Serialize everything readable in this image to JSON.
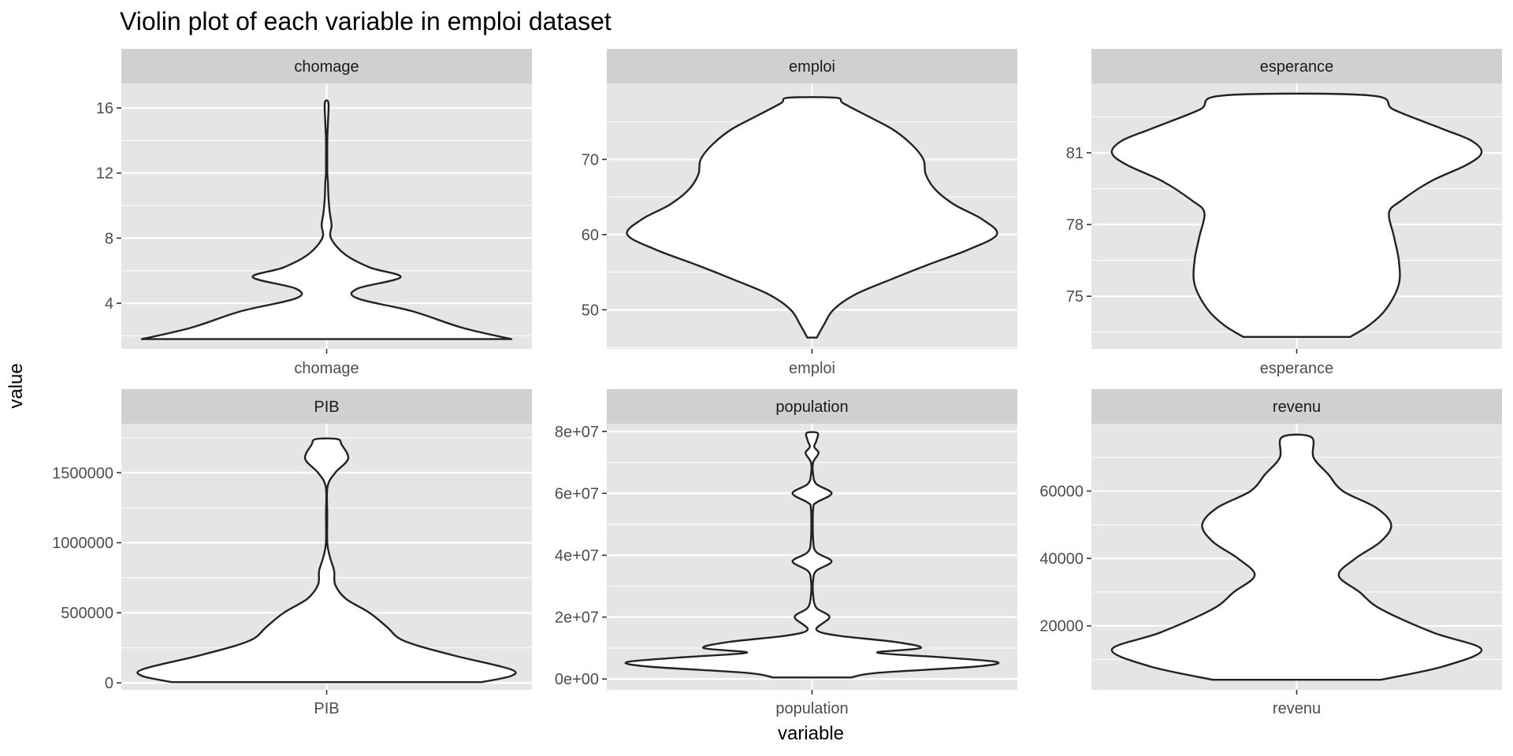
{
  "chart_data": {
    "type": "violin",
    "title": "Violin plot of each variable in emploi dataset",
    "xlabel": "variable",
    "ylabel": "value",
    "layout": "facet grid 2 rows x 3 columns, free y scales",
    "colors": {
      "panel_bg": "#e5e5e5",
      "strip_bg": "#d0d0d0",
      "grid": "#ffffff",
      "violin_fill": "#ffffff",
      "violin_stroke": "#222222",
      "tick_label": "#4d4d4d"
    },
    "panels": [
      {
        "name": "chomage",
        "x_tick": "chomage",
        "ylim": [
          1.2,
          17.5
        ],
        "y_ticks": [
          4,
          8,
          12,
          16
        ],
        "y_tick_labels": [
          "4",
          "8",
          "12",
          "16"
        ],
        "violin_range": [
          1.8,
          16.3
        ],
        "density_profile": [
          [
            1.8,
            0.3
          ],
          [
            2.5,
            0.22
          ],
          [
            3.5,
            0.14
          ],
          [
            4.3,
            0.05
          ],
          [
            4.9,
            0.05
          ],
          [
            5.6,
            0.12
          ],
          [
            6.2,
            0.07
          ],
          [
            7.0,
            0.03
          ],
          [
            8.0,
            0.007
          ],
          [
            8.8,
            0.008
          ],
          [
            9.6,
            0.005
          ],
          [
            10.5,
            0.003
          ],
          [
            11.5,
            0.002
          ],
          [
            12.0,
            0.001
          ],
          [
            13.0,
            0.001
          ],
          [
            14.0,
            0.001
          ],
          [
            15.0,
            0.002
          ],
          [
            16.3,
            0.003
          ]
        ]
      },
      {
        "name": "emploi",
        "x_tick": "emploi",
        "ylim": [
          44.8,
          80.1
        ],
        "y_ticks": [
          50,
          60,
          70
        ],
        "y_tick_labels": [
          "50",
          "60",
          "70"
        ],
        "violin_range": [
          46.3,
          78.2
        ],
        "density_profile": [
          [
            46.3,
            0.02
          ],
          [
            48.0,
            0.05
          ],
          [
            50.0,
            0.09
          ],
          [
            52.0,
            0.18
          ],
          [
            54.0,
            0.33
          ],
          [
            56.0,
            0.49
          ],
          [
            58.0,
            0.66
          ],
          [
            60.0,
            0.78
          ],
          [
            62.0,
            0.72
          ],
          [
            64.0,
            0.6
          ],
          [
            66.0,
            0.52
          ],
          [
            68.0,
            0.48
          ],
          [
            70.0,
            0.47
          ],
          [
            72.0,
            0.42
          ],
          [
            74.0,
            0.34
          ],
          [
            76.0,
            0.22
          ],
          [
            77.5,
            0.13
          ],
          [
            78.2,
            0.1
          ]
        ]
      },
      {
        "name": "esperance",
        "x_tick": "esperance",
        "ylim": [
          72.8,
          83.9
        ],
        "y_ticks": [
          75,
          78,
          81
        ],
        "y_tick_labels": [
          "75",
          "78",
          "81"
        ],
        "violin_range": [
          73.3,
          83.4
        ],
        "density_profile": [
          [
            73.3,
            0.22
          ],
          [
            73.8,
            0.3
          ],
          [
            74.5,
            0.37
          ],
          [
            75.5,
            0.42
          ],
          [
            76.5,
            0.42
          ],
          [
            77.5,
            0.4
          ],
          [
            78.5,
            0.38
          ],
          [
            79.0,
            0.43
          ],
          [
            79.8,
            0.55
          ],
          [
            80.5,
            0.7
          ],
          [
            81.0,
            0.76
          ],
          [
            81.5,
            0.72
          ],
          [
            82.0,
            0.6
          ],
          [
            82.8,
            0.4
          ],
          [
            83.4,
            0.3
          ]
        ]
      },
      {
        "name": "PIB",
        "x_tick": "PIB",
        "ylim": [
          -50000,
          1850000
        ],
        "y_ticks": [
          0,
          500000,
          1000000,
          1500000
        ],
        "y_tick_labels": [
          "0",
          "500000",
          "1000000",
          "1500000"
        ],
        "violin_range": [
          5000,
          1740000
        ],
        "density_profile": [
          [
            5000,
            0.72
          ],
          [
            50000,
            0.86
          ],
          [
            100000,
            0.85
          ],
          [
            200000,
            0.58
          ],
          [
            300000,
            0.36
          ],
          [
            400000,
            0.28
          ],
          [
            500000,
            0.2
          ],
          [
            600000,
            0.09
          ],
          [
            700000,
            0.04
          ],
          [
            800000,
            0.035
          ],
          [
            900000,
            0.015
          ],
          [
            1000000,
            0.003
          ],
          [
            1200000,
            0.003
          ],
          [
            1400000,
            0.004
          ],
          [
            1500000,
            0.04
          ],
          [
            1600000,
            0.1
          ],
          [
            1700000,
            0.07
          ],
          [
            1740000,
            0.05
          ]
        ]
      },
      {
        "name": "population",
        "x_tick": "population",
        "ylim": [
          -3500000,
          82500000
        ],
        "y_ticks": [
          0,
          20000000,
          40000000,
          60000000,
          80000000
        ],
        "y_tick_labels": [
          "0e+00",
          "2e+07",
          "4e+07",
          "6e+07",
          "8e+07"
        ],
        "violin_range": [
          500000,
          79500000
        ],
        "density_profile": [
          [
            500000,
            0.18
          ],
          [
            2000000,
            0.3
          ],
          [
            4000000,
            0.75
          ],
          [
            5500000,
            0.85
          ],
          [
            7000000,
            0.6
          ],
          [
            8500000,
            0.3
          ],
          [
            10000000,
            0.5
          ],
          [
            12000000,
            0.38
          ],
          [
            14000000,
            0.12
          ],
          [
            16000000,
            0.02
          ],
          [
            20000000,
            0.08
          ],
          [
            23000000,
            0.02
          ],
          [
            27000000,
            0.005
          ],
          [
            32000000,
            0.005
          ],
          [
            35000000,
            0.02
          ],
          [
            38000000,
            0.09
          ],
          [
            41000000,
            0.02
          ],
          [
            45000000,
            0.005
          ],
          [
            55000000,
            0.005
          ],
          [
            57000000,
            0.02
          ],
          [
            60000000,
            0.09
          ],
          [
            63000000,
            0.02
          ],
          [
            66000000,
            0.005
          ],
          [
            70000000,
            0.005
          ],
          [
            73000000,
            0.03
          ],
          [
            75000000,
            0.01
          ],
          [
            77000000,
            0.02
          ],
          [
            79500000,
            0.025
          ]
        ]
      },
      {
        "name": "revenu",
        "x_tick": "revenu",
        "ylim": [
          1000,
          80000
        ],
        "y_ticks": [
          20000,
          40000,
          60000
        ],
        "y_tick_labels": [
          "20000",
          "40000",
          "60000"
        ],
        "violin_range": [
          4000,
          76000
        ],
        "density_profile": [
          [
            4000,
            0.4
          ],
          [
            8000,
            0.7
          ],
          [
            13000,
            0.88
          ],
          [
            18000,
            0.65
          ],
          [
            25000,
            0.4
          ],
          [
            30000,
            0.3
          ],
          [
            35000,
            0.2
          ],
          [
            40000,
            0.28
          ],
          [
            45000,
            0.4
          ],
          [
            50000,
            0.45
          ],
          [
            55000,
            0.38
          ],
          [
            60000,
            0.22
          ],
          [
            65000,
            0.15
          ],
          [
            70000,
            0.08
          ],
          [
            76000,
            0.07
          ]
        ]
      }
    ]
  }
}
